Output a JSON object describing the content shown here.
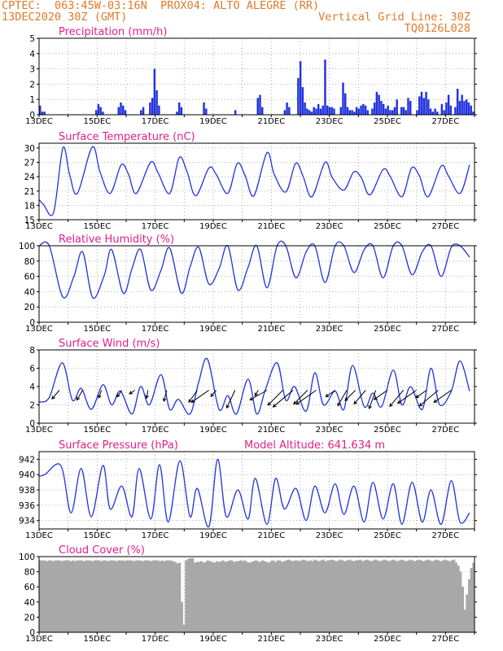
{
  "header": {
    "line1_left": "CPTEC:  063:45W-03:16N  PROX04: ALTO ALEGRE (RR)",
    "line2_left": "13DEC2020 30Z (GMT)",
    "line2_right": "Vertical Grid Line: 30Z",
    "line3_right": "TQ0126L028"
  },
  "colors": {
    "header_text": "#e07a2a",
    "panel_title": "#e0208a",
    "series": "#2233dd",
    "cloud": "#a8a8a8",
    "grid": "#999999"
  },
  "x_ticks": [
    "13DEC",
    "15DEC",
    "17DEC",
    "19DEC",
    "21DEC",
    "23DEC",
    "25DEC",
    "27DEC"
  ],
  "chart_data": [
    {
      "id": "precip",
      "type": "bar",
      "title": "Precipitation (mm/h)",
      "ylim": [
        0,
        5
      ],
      "yticks": [
        0,
        1,
        2,
        3,
        4,
        5
      ],
      "x_start_day": 0,
      "x_step_hours": 3,
      "values": [
        0.6,
        0.2,
        0.2,
        0,
        0,
        0,
        0,
        0,
        0,
        0,
        0,
        0,
        0,
        0,
        0,
        0,
        0,
        0,
        0,
        0,
        0,
        0,
        0,
        0,
        0,
        0.3,
        0.7,
        0.5,
        0.2,
        0,
        0,
        0,
        0,
        0,
        0,
        0.5,
        0.8,
        0.6,
        0.3,
        0,
        0,
        0,
        0,
        0,
        0,
        0.3,
        0.5,
        0,
        0,
        0.8,
        1.1,
        3.0,
        1.6,
        0.6,
        0,
        0,
        0,
        0,
        0,
        0,
        0,
        0.2,
        0.8,
        0.5,
        0,
        0,
        0,
        0,
        0,
        0,
        0,
        0,
        0,
        0.8,
        0.4,
        0,
        0,
        0,
        0,
        0,
        0,
        0,
        0,
        0,
        0,
        0,
        0,
        0.3,
        0,
        0,
        0,
        0,
        0,
        0,
        0,
        0,
        0,
        1.1,
        1.3,
        0.5,
        0,
        0,
        0,
        0,
        0,
        0,
        0,
        0,
        0,
        0.3,
        0.8,
        0.5,
        0,
        0,
        0,
        2.4,
        3.5,
        1.8,
        0.8,
        0.4,
        0.3,
        0.2,
        0.5,
        0.4,
        0.7,
        0.4,
        0.6,
        3.6,
        0.6,
        0.5,
        0.5,
        0.4,
        0,
        0,
        0.5,
        2.1,
        1.4,
        0.5,
        0.3,
        0.3,
        0.2,
        0.5,
        0.4,
        0.6,
        0.7,
        0.6,
        0.3,
        0,
        0.4,
        0.8,
        1.5,
        1.3,
        0.9,
        0.7,
        0.4,
        0.6,
        0.3,
        0.3,
        0.5,
        1.0,
        0,
        0.5,
        0.5,
        0.3,
        1.1,
        0.9,
        0,
        0,
        0.3,
        1.2,
        1.5,
        1.1,
        1.5,
        1.0,
        0.4,
        0.2,
        0.4,
        0.2,
        0,
        0.7,
        0.3,
        0.8,
        1.3,
        0.6,
        0,
        0.5,
        1.7,
        0.9,
        1.3,
        0.9,
        1.0,
        0.8,
        0.6,
        0.2
      ],
      "value_count": 200
    },
    {
      "id": "temp",
      "type": "line",
      "title": "Surface Temperature (nC)",
      "ylim": [
        15,
        31
      ],
      "yticks": [
        15,
        18,
        21,
        24,
        27,
        30
      ],
      "x_days": [
        0,
        0.15,
        0.5,
        0.82,
        1.05,
        1.32,
        1.83,
        2.1,
        2.45,
        2.83,
        3.08,
        3.35,
        3.84,
        4.1,
        4.5,
        4.83,
        5.1,
        5.4,
        5.85,
        6.1,
        6.5,
        6.83,
        7.1,
        7.4,
        7.85,
        8.1,
        8.5,
        8.84,
        9.1,
        9.4,
        9.85,
        10.1,
        10.5,
        10.84,
        11.1,
        11.4,
        11.85,
        12.1,
        12.5,
        12.83,
        13.1,
        13.4,
        13.85,
        14.1,
        14.5,
        14.83
      ],
      "y": [
        19.2,
        18.2,
        16.5,
        30.0,
        24.5,
        20.5,
        30.2,
        25.0,
        20.5,
        26.5,
        24.5,
        20.5,
        27.0,
        24.8,
        20.5,
        28.0,
        25.0,
        20.0,
        25.8,
        24.5,
        20.5,
        26.8,
        24.2,
        20.0,
        29.0,
        24.5,
        20.8,
        26.8,
        24.0,
        19.8,
        27.0,
        23.8,
        21.2,
        25.0,
        23.8,
        20.2,
        25.5,
        24.0,
        19.8,
        25.8,
        24.2,
        19.8,
        26.2,
        24.2,
        20.5,
        26.5
      ]
    },
    {
      "id": "rh",
      "type": "line",
      "title": "Relative Humidity (%)",
      "ylim": [
        0,
        100
      ],
      "yticks": [
        0,
        20,
        40,
        60,
        80,
        100
      ],
      "x_days": [
        0,
        0.35,
        0.82,
        1.2,
        1.5,
        1.85,
        2.25,
        2.5,
        2.9,
        3.2,
        3.5,
        3.85,
        4.2,
        4.5,
        4.9,
        5.2,
        5.5,
        5.85,
        6.2,
        6.5,
        6.85,
        7.2,
        7.5,
        7.85,
        8.2,
        8.5,
        8.85,
        9.2,
        9.5,
        9.85,
        10.2,
        10.5,
        10.85,
        11.2,
        11.5,
        11.85,
        12.2,
        12.5,
        12.85,
        13.2,
        13.5,
        13.85,
        14.2,
        14.5,
        14.83
      ],
      "y": [
        100,
        100,
        33,
        60,
        92,
        32,
        62,
        95,
        38,
        70,
        95,
        42,
        68,
        97,
        38,
        72,
        98,
        50,
        70,
        100,
        42,
        72,
        100,
        45,
        100,
        100,
        58,
        92,
        100,
        52,
        100,
        100,
        65,
        95,
        100,
        58,
        100,
        100,
        62,
        92,
        100,
        60,
        98,
        100,
        85
      ]
    },
    {
      "id": "wind",
      "type": "line",
      "title": "Surface Wind (m/s)",
      "ylim": [
        0,
        8
      ],
      "yticks": [
        0,
        2,
        4,
        6,
        8
      ],
      "x_days": [
        0,
        0.35,
        0.8,
        1.15,
        1.45,
        1.8,
        2.2,
        2.5,
        2.8,
        3.2,
        3.5,
        3.8,
        4.2,
        4.5,
        4.8,
        5.2,
        5.5,
        5.8,
        6.2,
        6.5,
        6.8,
        7.2,
        7.5,
        7.8,
        8.2,
        8.5,
        8.8,
        9.2,
        9.5,
        9.8,
        10.2,
        10.5,
        10.8,
        11.2,
        11.5,
        11.8,
        12.2,
        12.5,
        12.8,
        13.2,
        13.5,
        13.8,
        14.2,
        14.5,
        14.83
      ],
      "y": [
        2.3,
        2.8,
        6.6,
        2.5,
        3.8,
        1.5,
        4.2,
        2.0,
        3.5,
        1.0,
        4.0,
        2.0,
        5.3,
        1.5,
        2.6,
        1.0,
        4.5,
        7.0,
        1.5,
        3.0,
        1.0,
        4.8,
        1.0,
        3.7,
        6.6,
        2.5,
        4.0,
        1.3,
        5.5,
        2.0,
        3.5,
        1.5,
        6.3,
        1.8,
        3.3,
        1.8,
        5.8,
        2.0,
        4.0,
        1.5,
        6.0,
        2.0,
        3.5,
        6.8,
        3.5
      ],
      "arrows_days": [
        0.7,
        1.5,
        2.15,
        2.85,
        3.3,
        3.75,
        4.4,
        5.45,
        5.85,
        6.1,
        6.75,
        7.55,
        7.85,
        8.4,
        8.75,
        9.25,
        9.55,
        10.2,
        10.6,
        10.9,
        11.25,
        11.6,
        12.0,
        12.55,
        13.0,
        13.35,
        13.75,
        14.2
      ],
      "arrows_angle": [
        230,
        240,
        250,
        235,
        215,
        260,
        255,
        235,
        215,
        230,
        245,
        240,
        210,
        225,
        220,
        225,
        215,
        215,
        240,
        225,
        230,
        250,
        215,
        230,
        215,
        215,
        220,
        215
      ],
      "arrows_len": [
        14,
        14,
        10,
        10,
        8,
        10,
        14,
        18,
        26,
        10,
        24,
        8,
        24,
        26,
        32,
        24,
        30,
        14,
        22,
        18,
        22,
        24,
        20,
        26,
        28,
        16,
        30,
        26
      ]
    },
    {
      "id": "press",
      "type": "line",
      "title": "Surface Pressure (hPa)",
      "subtitle": "Model Altitude: 641.634 m",
      "ylim": [
        932.9,
        943
      ],
      "yticks": [
        934,
        936,
        938,
        940,
        942
      ],
      "x_days": [
        0,
        0.2,
        0.75,
        1.1,
        1.45,
        1.8,
        2.2,
        2.45,
        2.85,
        3.2,
        3.45,
        3.85,
        4.15,
        4.45,
        4.85,
        5.2,
        5.45,
        5.85,
        6.15,
        6.45,
        6.85,
        7.2,
        7.45,
        7.85,
        8.15,
        8.45,
        8.85,
        9.2,
        9.5,
        9.85,
        10.2,
        10.5,
        10.85,
        11.2,
        11.5,
        11.85,
        12.2,
        12.5,
        12.85,
        13.2,
        13.5,
        13.85,
        14.2,
        14.5,
        14.83
      ],
      "y": [
        939.8,
        940.0,
        941.2,
        935.0,
        940.8,
        934.5,
        941.2,
        935.5,
        938.5,
        934.5,
        940.8,
        934.2,
        941.3,
        933.8,
        941.8,
        934.5,
        938.2,
        933.2,
        942.0,
        934.5,
        938.0,
        934.2,
        939.5,
        933.5,
        939.5,
        935.5,
        938.2,
        934.0,
        938.5,
        935.0,
        938.8,
        934.8,
        938.5,
        933.8,
        939.0,
        934.2,
        938.8,
        933.5,
        939.0,
        933.8,
        938.0,
        933.5,
        939.2,
        933.8,
        935.0
      ]
    },
    {
      "id": "cloud",
      "type": "area",
      "title": "Cloud Cover (%)",
      "ylim": [
        0,
        100
      ],
      "yticks": [
        0,
        20,
        40,
        60,
        80,
        100
      ],
      "x_step_hours": 3,
      "values": [
        95,
        95,
        95,
        94,
        95,
        95,
        94,
        95,
        95,
        95,
        94,
        95,
        95,
        95,
        94,
        95,
        94,
        95,
        95,
        95,
        94,
        95,
        95,
        95,
        94,
        95,
        95,
        95,
        94,
        95,
        95,
        94,
        95,
        95,
        95,
        94,
        95,
        95,
        95,
        94,
        95,
        95,
        95,
        94,
        95,
        95,
        95,
        94,
        95,
        95,
        95,
        94,
        95,
        95,
        95,
        94,
        95,
        94,
        95,
        95,
        95,
        94,
        93,
        91,
        92,
        40,
        10,
        95,
        97,
        98,
        98,
        92,
        93,
        93,
        94,
        92,
        93,
        95,
        94,
        93,
        92,
        94,
        93,
        94,
        95,
        93,
        94,
        95,
        95,
        93,
        94,
        94,
        95,
        94,
        95,
        93,
        92,
        93,
        94,
        95,
        94,
        93,
        95,
        94,
        93,
        92,
        94,
        95,
        93,
        95,
        95,
        93,
        94,
        95,
        96,
        95,
        94,
        95,
        95,
        94,
        95,
        96,
        95,
        94,
        95,
        94,
        96,
        95,
        94,
        95,
        96,
        94,
        95,
        95,
        96,
        95,
        94,
        95,
        96,
        95,
        94,
        95,
        96,
        95,
        94,
        95,
        95,
        96,
        94,
        95,
        96,
        95,
        94,
        95,
        96,
        95,
        94,
        95,
        96,
        95,
        94,
        95,
        96,
        95,
        94,
        95,
        96,
        95,
        94,
        95,
        96,
        95,
        94,
        95,
        96,
        95,
        94,
        95,
        96,
        95,
        94,
        95,
        96,
        95,
        94,
        95,
        96,
        95,
        94,
        95,
        96,
        92,
        88,
        80,
        60,
        30,
        50,
        70,
        85,
        92
      ],
      "value_count": 200
    }
  ]
}
